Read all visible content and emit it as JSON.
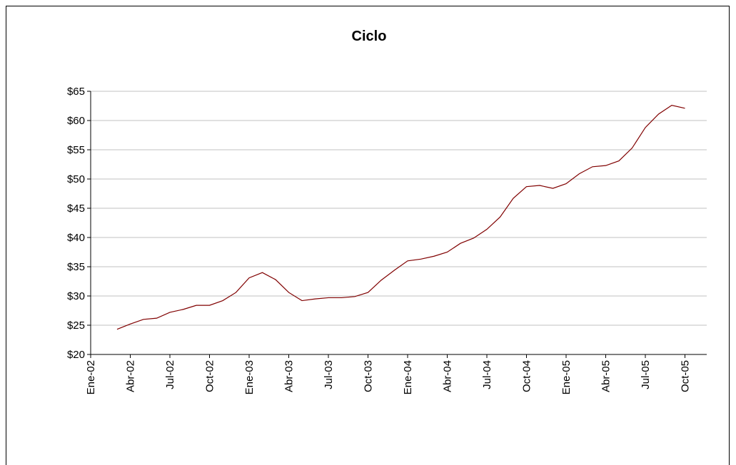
{
  "chart_data": {
    "type": "line",
    "title": "Ciclo",
    "categories": [
      "Ene-02",
      null,
      null,
      "Abr-02",
      null,
      null,
      "Jul-02",
      null,
      null,
      "Oct-02",
      null,
      null,
      "Ene-03",
      null,
      null,
      "Abr-03",
      null,
      null,
      "Jul-03",
      null,
      null,
      "Oct-03",
      null,
      null,
      "Ene-04",
      null,
      null,
      "Abr-04",
      null,
      null,
      "Jul-04",
      null,
      null,
      "Oct-04",
      null,
      null,
      "Ene-05",
      null,
      null,
      "Abr-05",
      null,
      null,
      "Jul-05",
      null,
      null,
      "Oct-05",
      null
    ],
    "values": [
      null,
      null,
      24.3,
      25.2,
      26.0,
      26.2,
      27.2,
      27.7,
      28.4,
      28.4,
      29.2,
      30.6,
      33.1,
      34.0,
      32.8,
      30.6,
      29.2,
      29.5,
      29.7,
      29.7,
      29.9,
      30.6,
      32.7,
      34.4,
      36.0,
      36.3,
      36.8,
      37.5,
      39.0,
      39.9,
      41.4,
      43.5,
      46.7,
      48.7,
      48.9,
      48.4,
      49.2,
      50.9,
      52.1,
      52.3,
      53.1,
      55.3,
      58.8,
      61.1,
      62.6,
      62.1,
      null
    ],
    "color": "#800000",
    "ylim": [
      20,
      65
    ],
    "yticks": [
      {
        "value": 20,
        "label": "$20"
      },
      {
        "value": 25,
        "label": "$25"
      },
      {
        "value": 30,
        "label": "$30"
      },
      {
        "value": 35,
        "label": "$35"
      },
      {
        "value": 40,
        "label": "$40"
      },
      {
        "value": 45,
        "label": "$45"
      },
      {
        "value": 50,
        "label": "$50"
      },
      {
        "value": 55,
        "label": "$55"
      },
      {
        "value": 60,
        "label": "$60"
      },
      {
        "value": 65,
        "label": "$65"
      }
    ],
    "grid": true
  }
}
